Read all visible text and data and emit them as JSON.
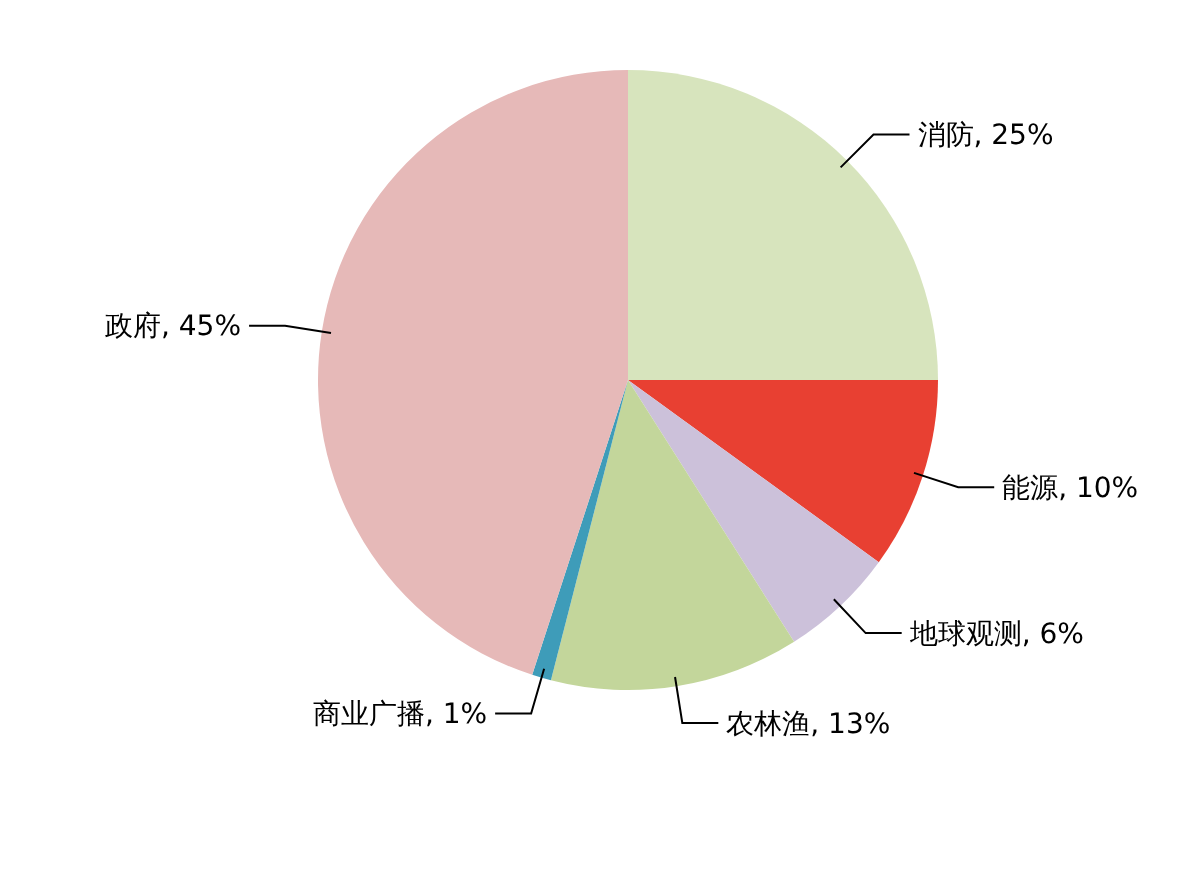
{
  "chart_data": {
    "type": "pie",
    "categories": [
      "消防",
      "能源",
      "地球观测",
      "农林渔",
      "商业广播",
      "政府"
    ],
    "values": [
      25,
      10,
      6,
      13,
      1,
      45
    ],
    "colors": [
      "#d7e4bd",
      "#e84032",
      "#ccc1da",
      "#c3d69b",
      "#3e9cb9",
      "#e6b9b8"
    ],
    "legend": false,
    "value_labels": [
      "25%",
      "10%",
      "6%",
      "13%",
      "1%",
      "45%"
    ]
  }
}
